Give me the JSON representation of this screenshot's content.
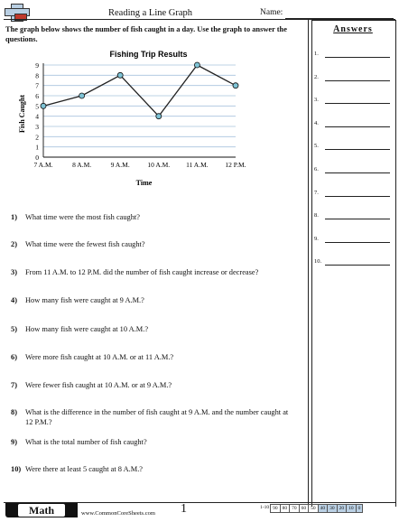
{
  "header": {
    "title": "Reading a Line Graph",
    "name_label": "Name:"
  },
  "instructions": "The graph below shows the number of fish caught in a day. Use the graph to answer the questions.",
  "chart_data": {
    "type": "line",
    "title": "Fishing Trip Results",
    "xlabel": "Time",
    "ylabel": "Fish Caught",
    "categories": [
      "7 A.M.",
      "8 A.M.",
      "9 A.M.",
      "10 A.M.",
      "11 A.M.",
      "12 P.M."
    ],
    "values": [
      5,
      6,
      8,
      4,
      9,
      7
    ],
    "ylim": [
      0,
      9
    ],
    "yticks": [
      "0",
      "1",
      "2",
      "3",
      "4",
      "5",
      "6",
      "7",
      "8",
      "9"
    ],
    "grid": true,
    "line_color": "#222222",
    "marker_color": "#7fc4d6",
    "grid_color": "#a8c4dd"
  },
  "questions": [
    {
      "num": "1)",
      "text": "What time were the most fish caught?"
    },
    {
      "num": "2)",
      "text": "What time were the fewest fish caught?"
    },
    {
      "num": "3)",
      "text": "From 11 A.M. to 12 P.M. did the number of fish caught increase or decrease?"
    },
    {
      "num": "4)",
      "text": "How many fish were caught at 9 A.M.?"
    },
    {
      "num": "5)",
      "text": "How many fish were caught at 10 A.M.?"
    },
    {
      "num": "6)",
      "text": "Were more fish caught at 10 A.M. or at 11 A.M.?"
    },
    {
      "num": "7)",
      "text": "Were fewer fish caught at 10 A.M. or at 9 A.M.?"
    },
    {
      "num": "8)",
      "text": "What is the difference in the number of fish caught at 9 A.M. and the number caught at 12 P.M.?"
    },
    {
      "num": "9)",
      "text": "What is the total number of fish caught?"
    },
    {
      "num": "10)",
      "text": "Were there at least 5 caught at 8 A.M.?"
    }
  ],
  "answers": {
    "title": "Answers",
    "rows": [
      "1.",
      "2.",
      "3.",
      "4.",
      "5.",
      "6.",
      "7.",
      "8.",
      "9.",
      "10."
    ]
  },
  "footer": {
    "subject": "Math",
    "site": "www.CommonCoreSheets.com",
    "page": "1",
    "score_range": "1-10",
    "scores": [
      "90",
      "80",
      "70",
      "60",
      "50",
      "40",
      "30",
      "20",
      "10",
      "0"
    ],
    "score_highlight_color": "#b9cfe3"
  }
}
